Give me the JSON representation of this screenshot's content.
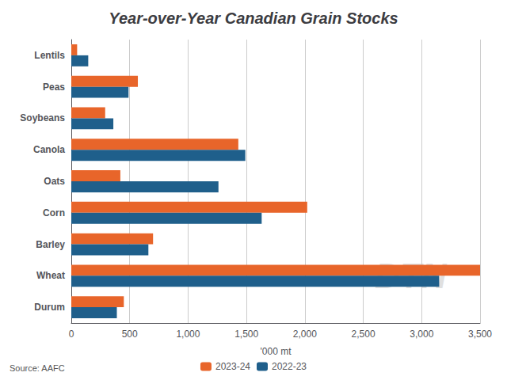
{
  "chart_data": {
    "type": "bar",
    "orientation": "horizontal",
    "title": "Year-over-Year Canadian Grain Stocks",
    "categories": [
      "Durum",
      "Wheat",
      "Barley",
      "Corn",
      "Oats",
      "Canola",
      "Soybeans",
      "Peas",
      "Lentils"
    ],
    "series": [
      {
        "name": "2023-24",
        "color": "#E8652A",
        "values": [
          450,
          3500,
          700,
          2020,
          420,
          1430,
          290,
          570,
          50
        ]
      },
      {
        "name": "2022-23",
        "color": "#1F5F8B",
        "values": [
          390,
          3150,
          660,
          1630,
          1260,
          1490,
          360,
          490,
          145
        ]
      }
    ],
    "xlabel": "'000 mt",
    "xlim": [
      0,
      3500
    ],
    "xticks": [
      0,
      500,
      {
        "value": 1000,
        "label": "1,000"
      },
      {
        "value": 1500,
        "label": "1,500"
      },
      {
        "value": 2000,
        "label": "2,000"
      },
      {
        "value": 2500,
        "label": "2,500"
      },
      {
        "value": 3000,
        "label": "3,000"
      },
      {
        "value": 3500,
        "label": "3,500"
      }
    ],
    "grid": true,
    "legend": "bottom",
    "annotations": [
      "Source: AAFC",
      "DTN"
    ]
  }
}
